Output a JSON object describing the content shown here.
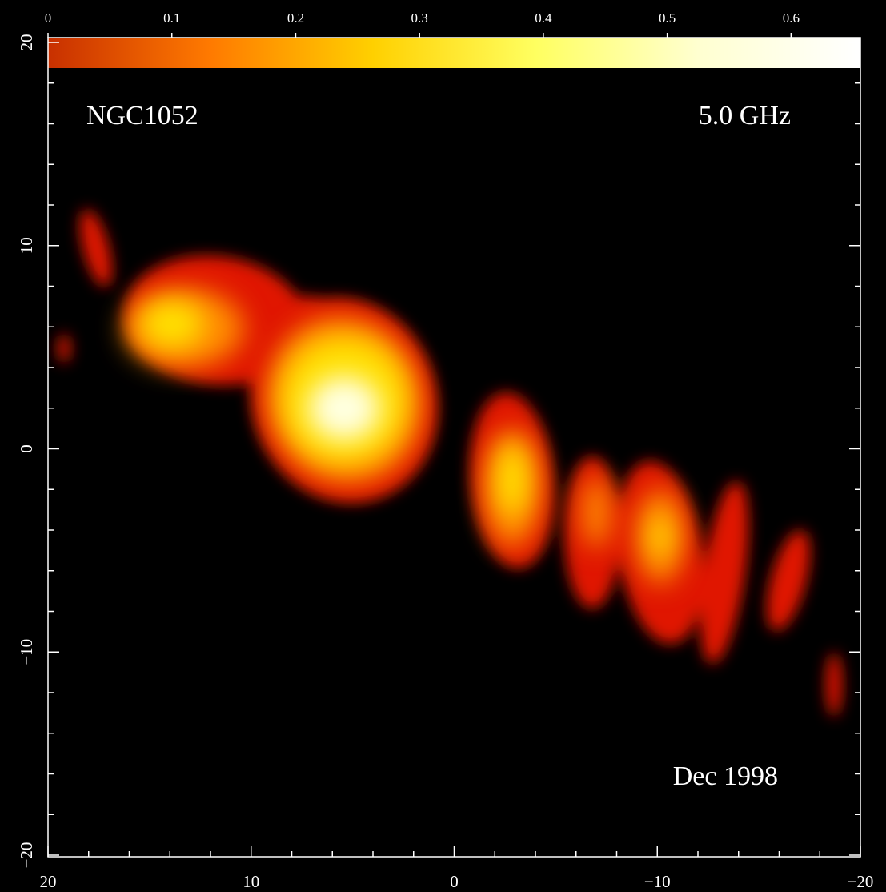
{
  "chart_data": {
    "type": "image",
    "annotations": [
      "NGC1052",
      "5.0 GHz",
      "Dec 1998"
    ],
    "xlim": [
      20,
      -20
    ],
    "ylim": [
      -20,
      20
    ],
    "xticks": [
      20,
      10,
      0,
      {
        "value": -10,
        "label": "−10"
      },
      {
        "value": -20,
        "label": "−20"
      }
    ],
    "yticks": [
      20,
      10,
      0,
      {
        "value": -10,
        "label": "−10"
      },
      {
        "value": -20,
        "label": "−20"
      }
    ],
    "minorticks": [
      18,
      16,
      14,
      12,
      8,
      6,
      4,
      2,
      -2,
      -4,
      -6,
      -8,
      -12,
      -14,
      -16,
      -18
    ],
    "colorbar": {
      "lim": [
        0,
        0.656
      ],
      "ticks": [
        0,
        0.1,
        0.2,
        0.3,
        0.4,
        0.5,
        0.6
      ],
      "colors": [
        "#c83000",
        "#ff7a00",
        "#ffd000",
        "#ffff60",
        "#ffffd0",
        "#ffffff"
      ]
    }
  }
}
